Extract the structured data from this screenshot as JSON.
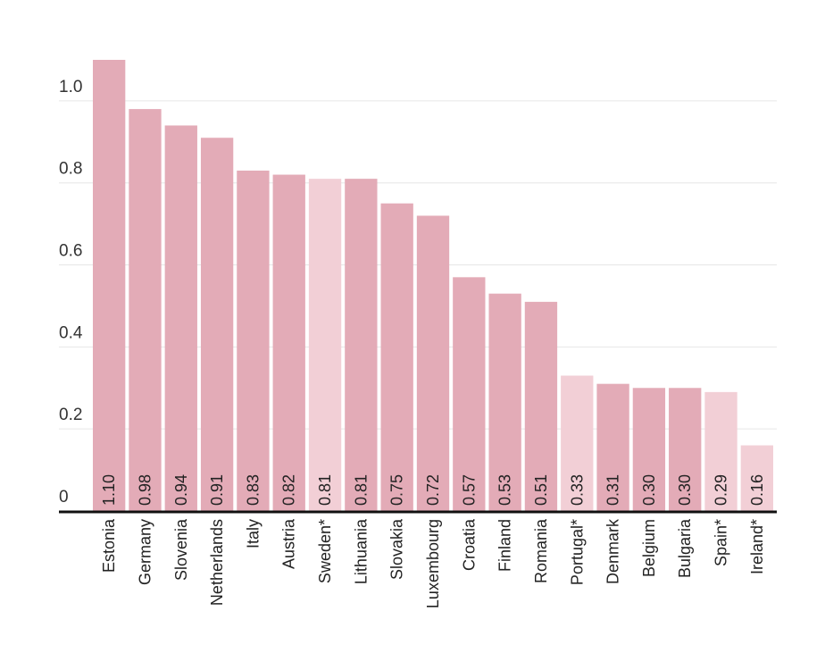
{
  "chart_data": {
    "type": "bar",
    "title": "",
    "xlabel": "",
    "ylabel": "",
    "ylim": [
      0,
      1.1
    ],
    "y_ticks": [
      "0",
      "0.2",
      "0.4",
      "0.6",
      "0.8",
      "1.0"
    ],
    "grid": true,
    "legend": "none",
    "colors": {
      "normal": "#e3abb7",
      "highlight": "#f2cfd6",
      "axis": "#111111",
      "grid": "#e6e6e6"
    },
    "categories": [
      "Estonia",
      "Germany",
      "Slovenia",
      "Netherlands",
      "Italy",
      "Austria",
      "Sweden*",
      "Lithuania",
      "Slovakia",
      "Luxembourg",
      "Croatia",
      "Finland",
      "Romania",
      "Portugal*",
      "Denmark",
      "Belgium",
      "Bulgaria",
      "Spain*",
      "Ireland*"
    ],
    "values": [
      1.1,
      0.98,
      0.94,
      0.91,
      0.83,
      0.82,
      0.81,
      0.81,
      0.75,
      0.72,
      0.57,
      0.53,
      0.51,
      0.33,
      0.31,
      0.3,
      0.3,
      0.29,
      0.16
    ],
    "value_labels": [
      "1.10",
      "0.98",
      "0.94",
      "0.91",
      "0.83",
      "0.82",
      "0.81",
      "0.81",
      "0.75",
      "0.72",
      "0.57",
      "0.53",
      "0.51",
      "0.33",
      "0.31",
      "0.30",
      "0.30",
      "0.29",
      "0.16"
    ],
    "highlighted": [
      false,
      false,
      false,
      false,
      false,
      false,
      true,
      false,
      false,
      false,
      false,
      false,
      false,
      true,
      false,
      false,
      false,
      true,
      true
    ]
  }
}
